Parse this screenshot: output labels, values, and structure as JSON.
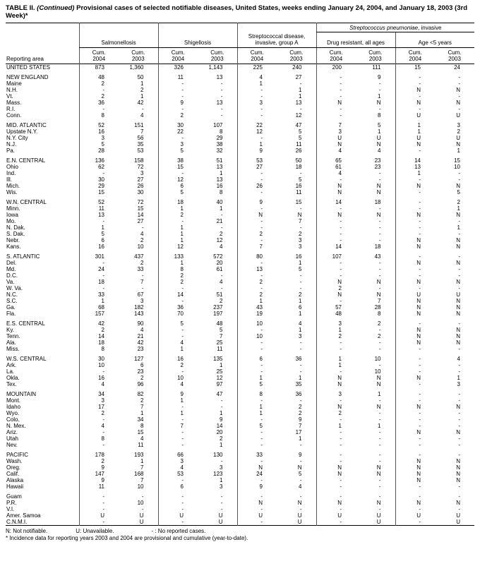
{
  "title": {
    "prefix": "TABLE II.",
    "continued": "(Continued)",
    "rest": "Provisional cases of selected notifiable diseases, United States, weeks ending January 24, 2004, and January 18, 2003 (3rd Week)*"
  },
  "header": {
    "reporting_area_label": "Reporting area",
    "span_group_italic": "Streptococcus pneumoniae",
    "span_group_rest": ", invasive",
    "groups": [
      "Salmonellosis",
      "Shigellosis",
      "Streptococcal disease, invasive, group A",
      "Drug resistant, all ages",
      "Age <5 years"
    ],
    "col_top": "Cum.",
    "col_years": [
      "2004",
      "2003"
    ]
  },
  "groups": [
    {
      "rows": [
        {
          "area": "UNITED STATES",
          "values": [
            "873",
            "1,360",
            "326",
            "1,143",
            "225",
            "240",
            "200",
            "111",
            "15",
            "24"
          ]
        }
      ]
    },
    {
      "rows": [
        {
          "area": "NEW ENGLAND",
          "values": [
            "48",
            "50",
            "11",
            "13",
            "4",
            "27",
            "-",
            "9",
            "-",
            "-"
          ]
        },
        {
          "area": "Maine",
          "values": [
            "2",
            "1",
            "-",
            "-",
            "1",
            "-",
            "-",
            "-",
            "-",
            "-"
          ]
        },
        {
          "area": "N.H.",
          "values": [
            "-",
            "2",
            "-",
            "-",
            "-",
            "1",
            "-",
            "-",
            "N",
            "N"
          ]
        },
        {
          "area": "Vt.",
          "values": [
            "2",
            "1",
            "-",
            "-",
            "-",
            "1",
            "-",
            "1",
            "-",
            "-"
          ]
        },
        {
          "area": "Mass.",
          "values": [
            "36",
            "42",
            "9",
            "13",
            "3",
            "13",
            "N",
            "N",
            "N",
            "N"
          ]
        },
        {
          "area": "R.I.",
          "values": [
            "-",
            "-",
            "-",
            "-",
            "-",
            "-",
            "-",
            "-",
            "-",
            "-"
          ]
        },
        {
          "area": "Conn.",
          "values": [
            "8",
            "4",
            "2",
            "-",
            "-",
            "12",
            "-",
            "8",
            "U",
            "U"
          ]
        }
      ]
    },
    {
      "rows": [
        {
          "area": "MID. ATLANTIC",
          "values": [
            "52",
            "151",
            "30",
            "107",
            "22",
            "47",
            "7",
            "5",
            "1",
            "3"
          ]
        },
        {
          "area": "Upstate N.Y.",
          "values": [
            "16",
            "7",
            "22",
            "8",
            "12",
            "5",
            "3",
            "1",
            "1",
            "2"
          ]
        },
        {
          "area": "N.Y. City",
          "values": [
            "3",
            "56",
            "-",
            "29",
            "-",
            "5",
            "U",
            "U",
            "U",
            "U"
          ]
        },
        {
          "area": "N.J.",
          "values": [
            "5",
            "35",
            "3",
            "38",
            "1",
            "11",
            "N",
            "N",
            "N",
            "N"
          ]
        },
        {
          "area": "Pa.",
          "values": [
            "28",
            "53",
            "5",
            "32",
            "9",
            "26",
            "4",
            "4",
            "-",
            "1"
          ]
        }
      ]
    },
    {
      "rows": [
        {
          "area": "E.N. CENTRAL",
          "values": [
            "136",
            "158",
            "38",
            "51",
            "53",
            "50",
            "65",
            "23",
            "14",
            "15"
          ]
        },
        {
          "area": "Ohio",
          "values": [
            "62",
            "72",
            "15",
            "13",
            "27",
            "18",
            "61",
            "23",
            "13",
            "10"
          ]
        },
        {
          "area": "Ind.",
          "values": [
            "-",
            "3",
            "-",
            "1",
            "-",
            "-",
            "4",
            "-",
            "1",
            "-"
          ]
        },
        {
          "area": "Ill.",
          "values": [
            "30",
            "27",
            "12",
            "13",
            "-",
            "5",
            "-",
            "-",
            "-",
            "-"
          ]
        },
        {
          "area": "Mich.",
          "values": [
            "29",
            "26",
            "6",
            "16",
            "26",
            "16",
            "N",
            "N",
            "N",
            "N"
          ]
        },
        {
          "area": "Wis.",
          "values": [
            "15",
            "30",
            "5",
            "8",
            "-",
            "11",
            "N",
            "N",
            "-",
            "5"
          ]
        }
      ]
    },
    {
      "rows": [
        {
          "area": "W.N. CENTRAL",
          "values": [
            "52",
            "72",
            "18",
            "40",
            "9",
            "15",
            "14",
            "18",
            "-",
            "2"
          ]
        },
        {
          "area": "Minn.",
          "values": [
            "11",
            "15",
            "1",
            "1",
            "-",
            "-",
            "-",
            "-",
            "-",
            "1"
          ]
        },
        {
          "area": "Iowa",
          "values": [
            "13",
            "14",
            "2",
            "-",
            "N",
            "N",
            "N",
            "N",
            "N",
            "N"
          ]
        },
        {
          "area": "Mo.",
          "values": [
            "-",
            "27",
            "-",
            "21",
            "-",
            "7",
            "-",
            "-",
            "-",
            "-"
          ]
        },
        {
          "area": "N. Dak.",
          "values": [
            "1",
            "-",
            "1",
            "-",
            "-",
            "-",
            "-",
            "-",
            "-",
            "1"
          ]
        },
        {
          "area": "S. Dak.",
          "values": [
            "5",
            "4",
            "1",
            "2",
            "2",
            "2",
            "-",
            "-",
            "-",
            "-"
          ]
        },
        {
          "area": "Nebr.",
          "values": [
            "6",
            "2",
            "1",
            "12",
            "-",
            "3",
            "-",
            "-",
            "N",
            "N"
          ]
        },
        {
          "area": "Kans.",
          "values": [
            "16",
            "10",
            "12",
            "4",
            "7",
            "3",
            "14",
            "18",
            "N",
            "N"
          ]
        }
      ]
    },
    {
      "rows": [
        {
          "area": "S. ATLANTIC",
          "values": [
            "301",
            "437",
            "133",
            "572",
            "80",
            "16",
            "107",
            "43",
            "-",
            "-"
          ]
        },
        {
          "area": "Del.",
          "values": [
            "-",
            "2",
            "1",
            "20",
            "-",
            "1",
            "-",
            "-",
            "N",
            "N"
          ]
        },
        {
          "area": "Md.",
          "values": [
            "24",
            "33",
            "8",
            "61",
            "13",
            "5",
            "-",
            "-",
            "-",
            "-"
          ]
        },
        {
          "area": "D.C.",
          "values": [
            "-",
            "-",
            "2",
            "-",
            "-",
            "-",
            "-",
            "-",
            "-",
            "-"
          ]
        },
        {
          "area": "Va.",
          "values": [
            "18",
            "7",
            "2",
            "4",
            "2",
            "-",
            "N",
            "N",
            "N",
            "N"
          ]
        },
        {
          "area": "W. Va.",
          "values": [
            "-",
            "-",
            "-",
            "-",
            "-",
            "-",
            "2",
            "-",
            "-",
            "-"
          ]
        },
        {
          "area": "N.C.",
          "values": [
            "33",
            "67",
            "14",
            "51",
            "2",
            "2",
            "N",
            "N",
            "U",
            "U"
          ]
        },
        {
          "area": "S.C.",
          "values": [
            "1",
            "3",
            "-",
            "2",
            "1",
            "1",
            "-",
            "7",
            "N",
            "N"
          ]
        },
        {
          "area": "Ga.",
          "values": [
            "68",
            "182",
            "36",
            "237",
            "43",
            "6",
            "57",
            "28",
            "N",
            "N"
          ]
        },
        {
          "area": "Fla.",
          "values": [
            "157",
            "143",
            "70",
            "197",
            "19",
            "1",
            "48",
            "8",
            "N",
            "N"
          ]
        }
      ]
    },
    {
      "rows": [
        {
          "area": "E.S. CENTRAL",
          "values": [
            "42",
            "90",
            "5",
            "48",
            "10",
            "4",
            "3",
            "2",
            "-",
            "-"
          ]
        },
        {
          "area": "Ky.",
          "values": [
            "2",
            "4",
            "-",
            "5",
            "-",
            "1",
            "1",
            "-",
            "N",
            "N"
          ]
        },
        {
          "area": "Tenn.",
          "values": [
            "14",
            "21",
            "-",
            "7",
            "10",
            "3",
            "2",
            "2",
            "N",
            "N"
          ]
        },
        {
          "area": "Ala.",
          "values": [
            "18",
            "42",
            "4",
            "25",
            "-",
            "-",
            "-",
            "-",
            "N",
            "N"
          ]
        },
        {
          "area": "Miss.",
          "values": [
            "8",
            "23",
            "1",
            "11",
            "-",
            "-",
            "-",
            "-",
            "-",
            "-"
          ]
        }
      ]
    },
    {
      "rows": [
        {
          "area": "W.S. CENTRAL",
          "values": [
            "30",
            "127",
            "16",
            "135",
            "6",
            "36",
            "1",
            "10",
            "-",
            "4"
          ]
        },
        {
          "area": "Ark.",
          "values": [
            "10",
            "6",
            "2",
            "1",
            "-",
            "-",
            "1",
            "-",
            "-",
            "-"
          ]
        },
        {
          "area": "La.",
          "values": [
            "-",
            "23",
            "-",
            "25",
            "-",
            "-",
            "-",
            "10",
            "-",
            "-"
          ]
        },
        {
          "area": "Okla.",
          "values": [
            "16",
            "2",
            "10",
            "12",
            "1",
            "1",
            "N",
            "N",
            "N",
            "1"
          ]
        },
        {
          "area": "Tex.",
          "values": [
            "4",
            "96",
            "4",
            "97",
            "5",
            "35",
            "N",
            "N",
            "-",
            "3"
          ]
        }
      ]
    },
    {
      "rows": [
        {
          "area": "MOUNTAIN",
          "values": [
            "34",
            "82",
            "9",
            "47",
            "8",
            "36",
            "3",
            "1",
            "-",
            "-"
          ]
        },
        {
          "area": "Mont.",
          "values": [
            "3",
            "2",
            "1",
            "-",
            "-",
            "-",
            "-",
            "-",
            "-",
            "-"
          ]
        },
        {
          "area": "Idaho",
          "values": [
            "17",
            "7",
            "-",
            "-",
            "1",
            "2",
            "N",
            "N",
            "N",
            "N"
          ]
        },
        {
          "area": "Wyo.",
          "values": [
            "2",
            "1",
            "1",
            "1",
            "1",
            "2",
            "2",
            "-",
            "-",
            "-"
          ]
        },
        {
          "area": "Colo.",
          "values": [
            "-",
            "34",
            "-",
            "9",
            "-",
            "9",
            "-",
            "-",
            "-",
            "-"
          ]
        },
        {
          "area": "N. Mex.",
          "values": [
            "4",
            "8",
            "7",
            "14",
            "5",
            "7",
            "1",
            "1",
            "-",
            "-"
          ]
        },
        {
          "area": "Ariz.",
          "values": [
            "-",
            "15",
            "-",
            "20",
            "-",
            "17",
            "-",
            "-",
            "N",
            "N"
          ]
        },
        {
          "area": "Utah",
          "values": [
            "8",
            "4",
            "-",
            "2",
            "-",
            "1",
            "-",
            "-",
            "-",
            "-"
          ]
        },
        {
          "area": "Nev.",
          "values": [
            "-",
            "11",
            "-",
            "1",
            "-",
            "-",
            "-",
            "-",
            "-",
            "-"
          ]
        }
      ]
    },
    {
      "rows": [
        {
          "area": "PACIFIC",
          "values": [
            "178",
            "193",
            "66",
            "130",
            "33",
            "9",
            "-",
            "-",
            "-",
            "-"
          ]
        },
        {
          "area": "Wash.",
          "values": [
            "2",
            "1",
            "3",
            "-",
            "-",
            "-",
            "-",
            "-",
            "N",
            "N"
          ]
        },
        {
          "area": "Oreg.",
          "values": [
            "9",
            "7",
            "4",
            "3",
            "N",
            "N",
            "N",
            "N",
            "N",
            "N"
          ]
        },
        {
          "area": "Calif.",
          "values": [
            "147",
            "168",
            "53",
            "123",
            "24",
            "5",
            "N",
            "N",
            "N",
            "N"
          ]
        },
        {
          "area": "Alaska",
          "values": [
            "9",
            "7",
            "-",
            "1",
            "-",
            "-",
            "-",
            "-",
            "N",
            "N"
          ]
        },
        {
          "area": "Hawaii",
          "values": [
            "11",
            "10",
            "6",
            "3",
            "9",
            "4",
            "-",
            "-",
            "-",
            "-"
          ]
        }
      ]
    },
    {
      "rows": [
        {
          "area": "Guam",
          "values": [
            "-",
            "-",
            "-",
            "-",
            "-",
            "-",
            "-",
            "-",
            "-",
            "-"
          ]
        },
        {
          "area": "P.R.",
          "values": [
            "-",
            "10",
            "-",
            "-",
            "N",
            "N",
            "N",
            "N",
            "N",
            "N"
          ]
        },
        {
          "area": "V.I.",
          "values": [
            "-",
            "-",
            "-",
            "-",
            "-",
            "-",
            "-",
            "-",
            "-",
            "-"
          ]
        },
        {
          "area": "Amer. Samoa",
          "values": [
            "U",
            "U",
            "U",
            "U",
            "U",
            "U",
            "U",
            "U",
            "U",
            "U"
          ]
        },
        {
          "area": "C.N.M.I.",
          "values": [
            "-",
            "U",
            "-",
            "U",
            "-",
            "U",
            "-",
            "U",
            "-",
            "U"
          ]
        }
      ]
    }
  ],
  "footnotes": {
    "legend": [
      "N: Not notifiable.",
      "U: Unavailable.",
      "- : No reported cases."
    ],
    "note": "* Incidence data for reporting years 2003 and 2004 are provisional and cumulative (year-to-date)."
  }
}
